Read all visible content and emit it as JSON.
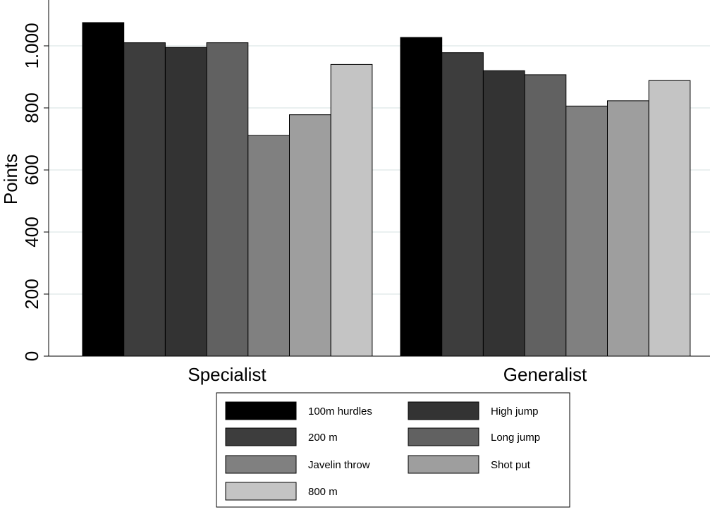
{
  "chart_data": {
    "type": "bar",
    "categories": [
      "Specialist",
      "Generalist"
    ],
    "series": [
      {
        "name": "100m hurdles",
        "values": [
          1075,
          1027
        ],
        "color": "#000000"
      },
      {
        "name": "200 m",
        "values": [
          1010,
          978
        ],
        "color": "#3d3d3d"
      },
      {
        "name": "High jump",
        "values": [
          995,
          920
        ],
        "color": "#333333"
      },
      {
        "name": "Long jump",
        "values": [
          1010,
          907
        ],
        "color": "#616161"
      },
      {
        "name": "Javelin throw",
        "values": [
          711,
          806
        ],
        "color": "#808080"
      },
      {
        "name": "Shot put",
        "values": [
          778,
          823
        ],
        "color": "#9e9e9e"
      },
      {
        "name": "800 m",
        "values": [
          940,
          888
        ],
        "color": "#c4c4c4"
      }
    ],
    "xlabel": "",
    "ylabel": "Points",
    "ylim": [
      0,
      1100
    ],
    "yticks": [
      0,
      200,
      400,
      600,
      800,
      1000
    ],
    "ytick_labels": [
      "0",
      "200",
      "400",
      "600",
      "800",
      "1.000"
    ],
    "grid": true,
    "legend_placement": "bottom",
    "legend_order": [
      "100m hurdles",
      "High jump",
      "200 m",
      "Long jump",
      "Javelin throw",
      "Shot put",
      "800 m"
    ]
  }
}
